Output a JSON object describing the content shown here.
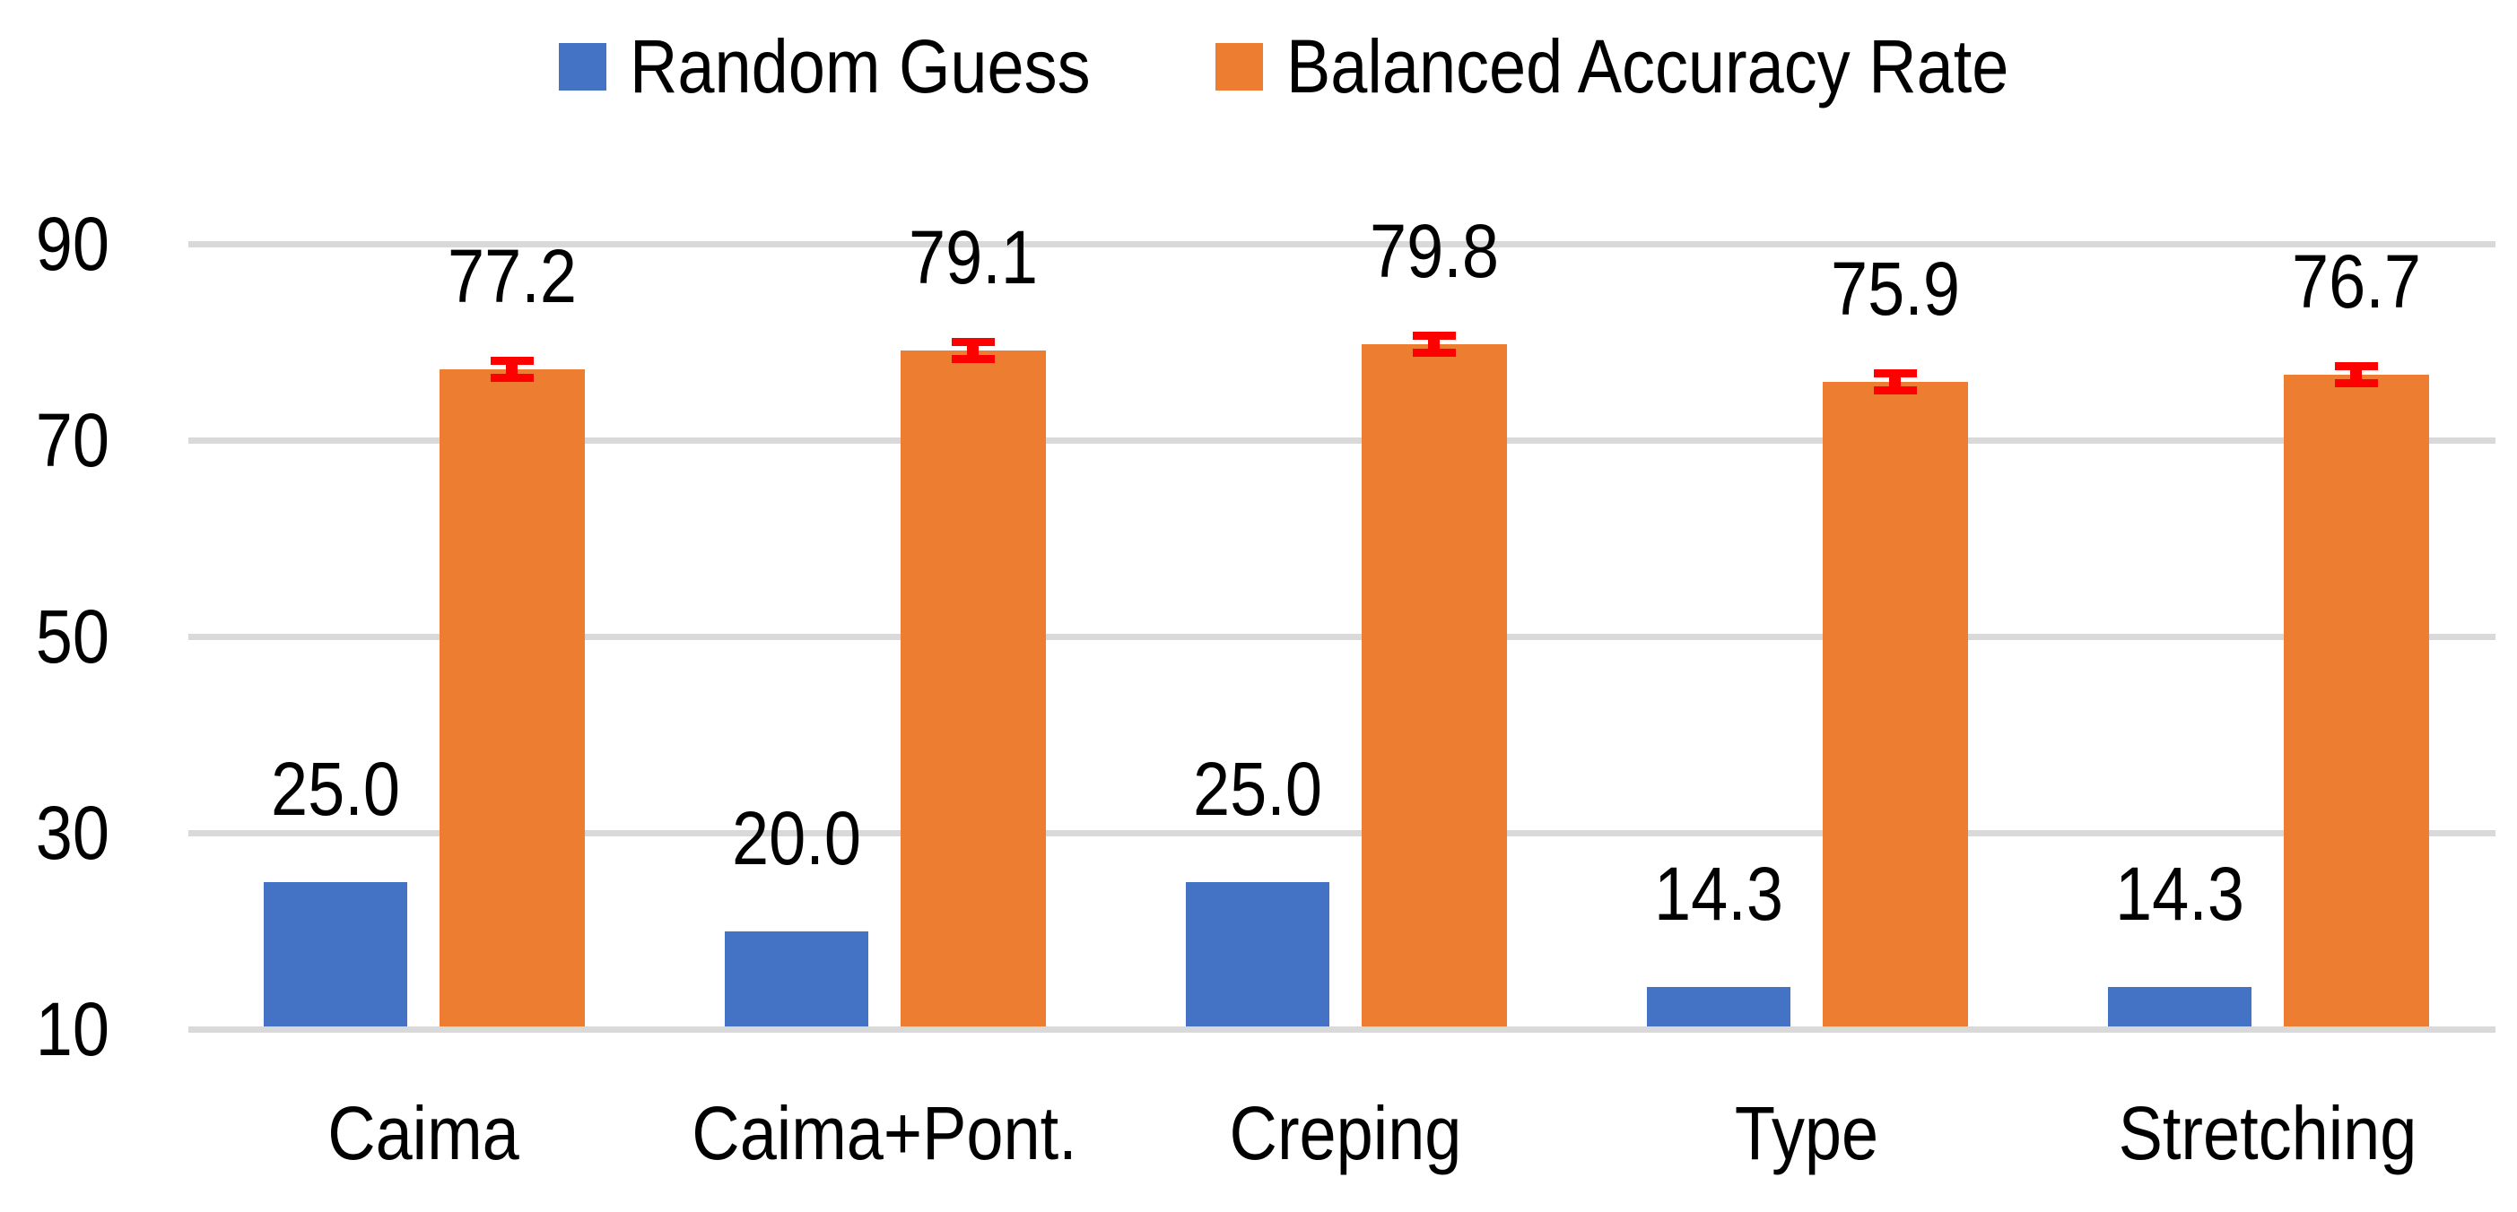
{
  "legend": {
    "items": [
      {
        "label": "Random Guess",
        "color": "#4472c4"
      },
      {
        "label": "Balanced Accuracy Rate",
        "color": "#ed7d31"
      }
    ]
  },
  "chart_data": {
    "type": "bar",
    "categories": [
      "Caima",
      "Caima+Pont.",
      "Creping",
      "Type",
      "Stretching"
    ],
    "series": [
      {
        "name": "Random Guess",
        "color": "#4472c4",
        "values": [
          25.0,
          20.0,
          25.0,
          14.3,
          14.3
        ],
        "data_labels": [
          "25.0",
          "20.0",
          "25.0",
          "14.3",
          "14.3"
        ]
      },
      {
        "name": "Balanced Accuracy Rate",
        "color": "#ed7d31",
        "values": [
          77.2,
          79.1,
          79.8,
          75.9,
          76.7
        ],
        "data_labels": [
          "77.2",
          "79.1",
          "79.8",
          "75.9",
          "76.7"
        ],
        "error_bars": {
          "plus_minus": 0.9,
          "color": "#ff0000"
        }
      }
    ],
    "y_axis": {
      "ticks": [
        "90",
        "70",
        "50",
        "30",
        "10"
      ],
      "tick_values": [
        90,
        70,
        50,
        30,
        10
      ],
      "min": 10,
      "major_unit": 20,
      "gridlines": true
    },
    "x_axis": {
      "labels": [
        "Caima",
        "Caima+Pont.",
        "Creping",
        "Type",
        "Stretching"
      ]
    },
    "legend_position": "top-center",
    "colors": {
      "gridline": "#d9d9d9",
      "text": "#000000",
      "error_bar": "#ff0000",
      "background": "#ffffff"
    }
  }
}
